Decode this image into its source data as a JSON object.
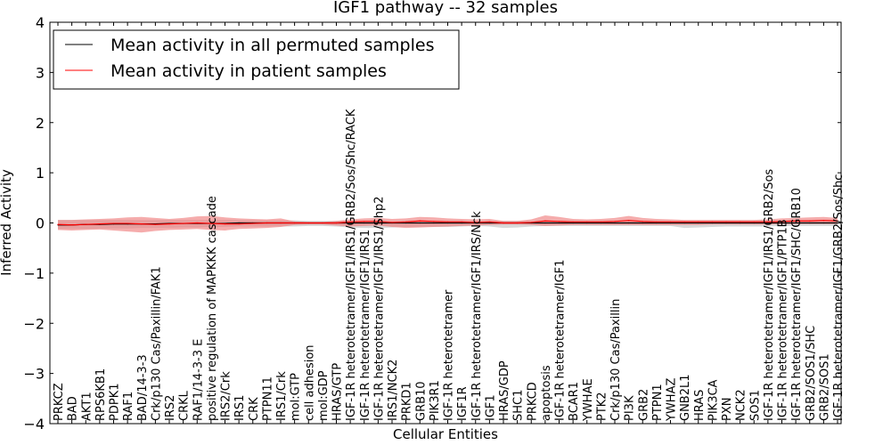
{
  "chart_data": {
    "type": "line",
    "title": "IGF1 pathway -- 32 samples",
    "xlabel": "Cellular Entities",
    "ylabel": "Inferred Activity",
    "ylim": [
      -4,
      4
    ],
    "yticks": [
      "4",
      "3",
      "2",
      "1",
      "0",
      "−1",
      "−2",
      "−3",
      "−4"
    ],
    "ytick_values": [
      4,
      3,
      2,
      1,
      0,
      -1,
      -2,
      -3,
      -4
    ],
    "legend": {
      "position": "top-left",
      "entries": [
        {
          "label": "Mean activity in all permuted samples",
          "color": "#000000"
        },
        {
          "label": "Mean activity in patient samples",
          "color": "#ff0000"
        }
      ]
    },
    "colors": {
      "patient_line": "#ff0000",
      "patient_band": "#f08080",
      "permuted_line": "#000000",
      "permuted_band": "#c8c8c8"
    },
    "categories": [
      "PRKCZ",
      "BAD",
      "AKT1",
      "RPS6KB1",
      "PDPK1",
      "RAF1",
      "BAD/14-3-3",
      "Crk/p130 Cas/Paxillin/FAK1",
      "IRS2",
      "CRKL",
      "RAF1/14-3-3 E",
      "positive regulation of MAPKKK cascade",
      "IRS2/Crk",
      "IRS1",
      "CRK",
      "PTPN11",
      "IRS1/Crk",
      "mol:GTP",
      "cell adhesion",
      "mol:GDP",
      "HRAS/GTP",
      "IGF-1R heterotetramer/IGF1/IRS1/GRB2/Sos/Shc/RACK",
      "IGF-1R heterotetramer/IGF1/IRS1",
      "IGF-1R heterotetramer/IGF1/IRS1/Shp2",
      "IRS1/NCK2",
      "PRKD1",
      "GRB10",
      "PIK3R1",
      "IGF-1R heterotetramer",
      "IGF1R",
      "IGF-1R heterotetramer/IGF1/IRS/Nck",
      "IGF1",
      "HRAS/GDP",
      "SHC1",
      "PRKCD",
      "apoptosis",
      "IGF-1R heterotetramer/IGF1",
      "BCAR1",
      "YWHAE",
      "PTK2",
      "Crk/p130 Cas/Paxillin",
      "PI3K",
      "GRB2",
      "PTPN1",
      "YWHAZ",
      "GNB2L1",
      "HRAS",
      "PIK3CA",
      "PXN",
      "NCK2",
      "SOS1",
      "IGF-1R heterotetramer/IGF1/IRS1/GRB2/Sos",
      "IGF-1R heterotetramer/IGF1/PTP1B",
      "IGF-1R heterotetramer/IGF1/SHC/GRB10",
      "GRB2/SOS1/SHC",
      "GRB2/SOS1",
      "IGF-1R heterotetramer/IGF1/GRB2/Sos/Shc"
    ],
    "series": [
      {
        "name": "Mean activity in all permuted samples",
        "values": [
          -0.04,
          -0.04,
          -0.03,
          -0.03,
          -0.02,
          -0.02,
          -0.02,
          -0.02,
          -0.01,
          -0.01,
          -0.01,
          -0.01,
          -0.01,
          0,
          0,
          0,
          0,
          0,
          0,
          0,
          0,
          0,
          0,
          0,
          0,
          0,
          0,
          0,
          0,
          0,
          0,
          0,
          0,
          0,
          0,
          0,
          0,
          0,
          0,
          0,
          0,
          0,
          0,
          0,
          0,
          0,
          0,
          0,
          0,
          0,
          0,
          0,
          0,
          0,
          0,
          0,
          0
        ],
        "band_upper": [
          0.06,
          0.06,
          0.06,
          0.06,
          0.06,
          0.06,
          0.06,
          0.06,
          0.06,
          0.06,
          0.06,
          0.06,
          0.06,
          0.05,
          0.05,
          0.05,
          0.05,
          0.05,
          0.04,
          0.04,
          0.04,
          0.04,
          0.04,
          0.04,
          0.04,
          0.04,
          0.04,
          0.04,
          0.04,
          0.04,
          0.04,
          0.04,
          0.04,
          0.04,
          0.04,
          0.04,
          0.04,
          0.04,
          0.04,
          0.04,
          0.04,
          0.04,
          0.04,
          0.04,
          0.04,
          0.04,
          0.04,
          0.04,
          0.04,
          0.04,
          0.04,
          0.04,
          0.04,
          0.04,
          0.04,
          0.04,
          0.04
        ],
        "band_lower": [
          -0.12,
          -0.12,
          -0.12,
          -0.11,
          -0.11,
          -0.11,
          -0.1,
          -0.1,
          -0.1,
          -0.09,
          -0.09,
          -0.08,
          -0.08,
          -0.07,
          -0.07,
          -0.07,
          -0.07,
          -0.07,
          -0.06,
          -0.06,
          -0.07,
          -0.09,
          -0.1,
          -0.1,
          -0.09,
          -0.08,
          -0.08,
          -0.08,
          -0.08,
          -0.07,
          -0.06,
          -0.07,
          -0.1,
          -0.09,
          -0.07,
          -0.06,
          -0.06,
          -0.06,
          -0.06,
          -0.06,
          -0.06,
          -0.06,
          -0.06,
          -0.06,
          -0.06,
          -0.1,
          -0.09,
          -0.08,
          -0.07,
          -0.07,
          -0.07,
          -0.07,
          -0.06,
          -0.06,
          -0.06,
          -0.06,
          -0.06
        ]
      },
      {
        "name": "Mean activity in patient samples",
        "values": [
          -0.03,
          -0.04,
          -0.03,
          -0.02,
          -0.01,
          -0.01,
          -0.02,
          -0.03,
          -0.02,
          -0.01,
          0,
          -0.01,
          -0.02,
          -0.02,
          -0.01,
          0,
          0,
          0,
          0,
          0,
          0,
          0.02,
          0.03,
          0.03,
          0.01,
          0.02,
          0.04,
          0.03,
          0.02,
          0.02,
          0.01,
          0.02,
          0,
          0,
          0.01,
          0.04,
          0.03,
          0.02,
          0.02,
          0.02,
          0.03,
          0.05,
          0.03,
          0.02,
          0.02,
          0.02,
          0.02,
          0.02,
          0.02,
          0.02,
          0.02,
          0.02,
          0.03,
          0.04,
          0.04,
          0.05,
          0.04
        ],
        "band_upper": [
          0.06,
          0.06,
          0.07,
          0.08,
          0.09,
          0.11,
          0.12,
          0.1,
          0.08,
          0.1,
          0.13,
          0.14,
          0.11,
          0.09,
          0.08,
          0.07,
          0.09,
          0.03,
          0.02,
          0.02,
          0.04,
          0.07,
          0.09,
          0.1,
          0.08,
          0.09,
          0.12,
          0.11,
          0.09,
          0.08,
          0.07,
          0.08,
          0.04,
          0.04,
          0.07,
          0.15,
          0.12,
          0.08,
          0.07,
          0.08,
          0.1,
          0.14,
          0.1,
          0.08,
          0.07,
          0.06,
          0.06,
          0.06,
          0.06,
          0.06,
          0.06,
          0.07,
          0.09,
          0.1,
          0.11,
          0.12,
          0.1
        ],
        "band_lower": [
          -0.14,
          -0.15,
          -0.14,
          -0.13,
          -0.15,
          -0.17,
          -0.19,
          -0.16,
          -0.14,
          -0.13,
          -0.12,
          -0.14,
          -0.15,
          -0.12,
          -0.11,
          -0.1,
          -0.08,
          -0.04,
          -0.03,
          -0.03,
          -0.05,
          -0.07,
          -0.06,
          -0.05,
          -0.08,
          -0.1,
          -0.09,
          -0.08,
          -0.07,
          -0.06,
          -0.05,
          -0.04,
          -0.03,
          -0.03,
          -0.04,
          -0.06,
          -0.05,
          -0.04,
          -0.04,
          -0.04,
          -0.04,
          -0.04,
          -0.04,
          -0.04,
          -0.04,
          -0.04,
          -0.04,
          -0.03,
          -0.03,
          -0.03,
          -0.03,
          -0.03,
          -0.02,
          -0.02,
          -0.02,
          -0.02,
          -0.02
        ]
      }
    ]
  }
}
